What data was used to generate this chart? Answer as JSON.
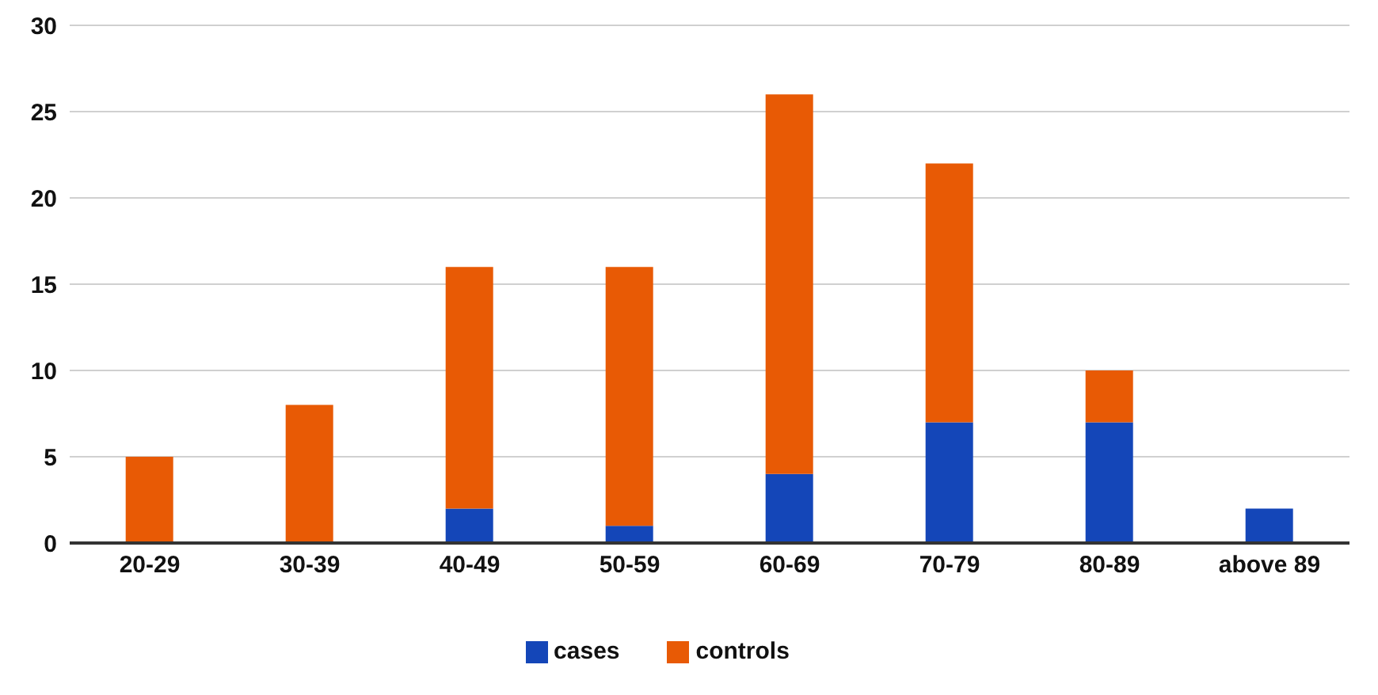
{
  "chart_data": {
    "type": "bar",
    "stacked": true,
    "categories": [
      "20-29",
      "30-39",
      "40-49",
      "50-59",
      "60-69",
      "70-79",
      "80-89",
      "above 89"
    ],
    "series": [
      {
        "name": "cases",
        "color": "#1446b8",
        "values": [
          0,
          0,
          2,
          1,
          4,
          7,
          7,
          2
        ]
      },
      {
        "name": "controls",
        "color": "#e85a05",
        "values": [
          5,
          8,
          14,
          15,
          22,
          15,
          3,
          0
        ]
      }
    ],
    "ylim": [
      0,
      30
    ],
    "yticks": [
      0,
      5,
      10,
      15,
      20,
      25,
      30
    ],
    "grid": "y",
    "legend": "bottom"
  }
}
